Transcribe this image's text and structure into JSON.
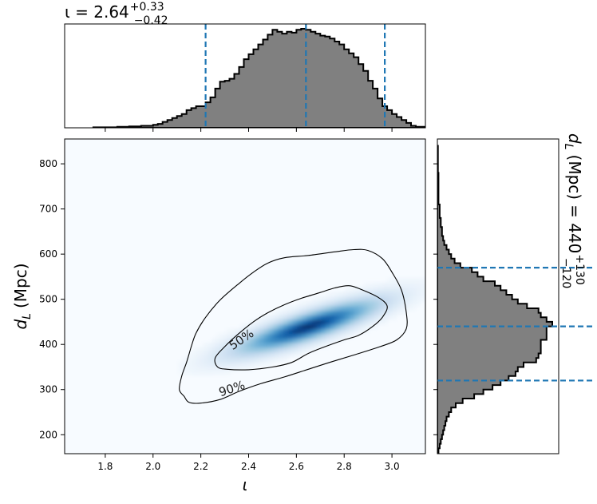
{
  "chart_data": {
    "type": "corner-plot",
    "panels": {
      "joint": {
        "type": "heatmap",
        "xlabel_sym": "ι",
        "ylabel_sym": "d",
        "ylabel_sub": "L",
        "ylabel_unit": "(Mpc)",
        "xlim": [
          1.63,
          3.14
        ],
        "ylim": [
          158,
          855
        ],
        "xticks": [
          1.8,
          2.0,
          2.2,
          2.4,
          2.6,
          2.8,
          3.0
        ],
        "xtick_labels": [
          "1.8",
          "2.0",
          "2.2",
          "2.4",
          "2.6",
          "2.8",
          "3.0"
        ],
        "yticks": [
          200,
          300,
          400,
          500,
          600,
          700,
          800
        ],
        "ytick_labels": [
          "200",
          "300",
          "400",
          "500",
          "600",
          "700",
          "800"
        ],
        "colormap": "Blues",
        "density_peak": {
          "x": 2.65,
          "y": 440
        },
        "contours": [
          {
            "label": "50%",
            "label_at": {
              "x": 2.37,
              "y": 411
            },
            "points": [
              [
                2.26,
                370
              ],
              [
                2.27,
                350
              ],
              [
                2.31,
                345
              ],
              [
                2.4,
                344
              ],
              [
                2.5,
                350
              ],
              [
                2.58,
                360
              ],
              [
                2.65,
                380
              ],
              [
                2.72,
                395
              ],
              [
                2.8,
                410
              ],
              [
                2.86,
                420
              ],
              [
                2.92,
                440
              ],
              [
                2.96,
                460
              ],
              [
                2.98,
                485
              ],
              [
                2.94,
                505
              ],
              [
                2.87,
                522
              ],
              [
                2.82,
                530
              ],
              [
                2.76,
                525
              ],
              [
                2.7,
                515
              ],
              [
                2.62,
                502
              ],
              [
                2.55,
                488
              ],
              [
                2.48,
                470
              ],
              [
                2.42,
                450
              ],
              [
                2.35,
                420
              ],
              [
                2.3,
                395
              ]
            ]
          },
          {
            "label": "90%",
            "label_at": {
              "x": 2.33,
              "y": 302
            },
            "points": [
              [
                2.11,
                300
              ],
              [
                2.13,
                285
              ],
              [
                2.15,
                272
              ],
              [
                2.2,
                270
              ],
              [
                2.28,
                278
              ],
              [
                2.36,
                296
              ],
              [
                2.45,
                313
              ],
              [
                2.55,
                328
              ],
              [
                2.65,
                345
              ],
              [
                2.75,
                362
              ],
              [
                2.85,
                378
              ],
              [
                2.95,
                395
              ],
              [
                3.02,
                410
              ],
              [
                3.06,
                435
              ],
              [
                3.06,
                470
              ],
              [
                3.04,
                520
              ],
              [
                3.0,
                560
              ],
              [
                2.96,
                590
              ],
              [
                2.9,
                608
              ],
              [
                2.84,
                610
              ],
              [
                2.76,
                605
              ],
              [
                2.65,
                597
              ],
              [
                2.55,
                592
              ],
              [
                2.48,
                580
              ],
              [
                2.42,
                560
              ],
              [
                2.36,
                535
              ],
              [
                2.28,
                498
              ],
              [
                2.22,
                460
              ],
              [
                2.18,
                425
              ],
              [
                2.16,
                395
              ],
              [
                2.14,
                360
              ],
              [
                2.12,
                330
              ]
            ]
          }
        ]
      },
      "marginal_x": {
        "type": "histogram",
        "variable": "ι",
        "title_main": "ι = 2.64",
        "title_sup": "+0.33",
        "title_sub": "−0.42",
        "median": 2.64,
        "quantiles": [
          2.22,
          2.64,
          2.97
        ],
        "quantile_style": "dashed",
        "quantile_color": "#1f77b4",
        "fill_color": "#808080",
        "bin_edges": [
          1.75,
          1.8,
          1.85,
          1.9,
          1.95,
          2.0,
          2.02,
          2.04,
          2.06,
          2.08,
          2.1,
          2.12,
          2.14,
          2.16,
          2.18,
          2.2,
          2.22,
          2.24,
          2.26,
          2.28,
          2.3,
          2.32,
          2.34,
          2.36,
          2.38,
          2.4,
          2.42,
          2.44,
          2.46,
          2.48,
          2.5,
          2.52,
          2.54,
          2.56,
          2.58,
          2.6,
          2.62,
          2.64,
          2.66,
          2.68,
          2.7,
          2.72,
          2.74,
          2.76,
          2.78,
          2.8,
          2.82,
          2.84,
          2.86,
          2.88,
          2.9,
          2.92,
          2.94,
          2.96,
          2.98,
          3.0,
          3.02,
          3.04,
          3.06,
          3.08,
          3.1,
          3.12,
          3.14
        ],
        "heights": [
          0.005,
          0.005,
          0.01,
          0.015,
          0.02,
          0.03,
          0.04,
          0.06,
          0.08,
          0.1,
          0.12,
          0.14,
          0.18,
          0.2,
          0.22,
          0.22,
          0.26,
          0.31,
          0.4,
          0.47,
          0.48,
          0.5,
          0.55,
          0.62,
          0.7,
          0.75,
          0.8,
          0.85,
          0.9,
          0.95,
          1.0,
          0.98,
          0.96,
          0.98,
          0.97,
          1.0,
          1.01,
          1.0,
          0.98,
          0.96,
          0.94,
          0.93,
          0.91,
          0.88,
          0.85,
          0.8,
          0.76,
          0.72,
          0.65,
          0.58,
          0.48,
          0.4,
          0.3,
          0.22,
          0.18,
          0.14,
          0.11,
          0.08,
          0.05,
          0.02,
          0.01,
          0.01
        ]
      },
      "marginal_y": {
        "type": "histogram",
        "orientation": "horizontal",
        "title_main": "= 440",
        "title_sup": "+130",
        "title_sub": "−120",
        "median": 440,
        "quantiles": [
          320,
          440,
          570
        ],
        "quantile_style": "dashed",
        "quantile_color": "#1f77b4",
        "fill_color": "#808080",
        "bin_edges": [
          158,
          170,
          180,
          190,
          200,
          210,
          220,
          230,
          240,
          250,
          260,
          270,
          280,
          290,
          300,
          310,
          320,
          330,
          340,
          350,
          360,
          370,
          380,
          390,
          400,
          410,
          420,
          430,
          440,
          450,
          460,
          470,
          480,
          490,
          500,
          510,
          520,
          530,
          540,
          550,
          560,
          570,
          580,
          590,
          600,
          610,
          620,
          630,
          640,
          650,
          660,
          670,
          680,
          690,
          700,
          710,
          720,
          730,
          740,
          760,
          780,
          800,
          820,
          840
        ],
        "heights": [
          0.01,
          0.02,
          0.03,
          0.04,
          0.05,
          0.06,
          0.07,
          0.08,
          0.1,
          0.12,
          0.16,
          0.22,
          0.32,
          0.4,
          0.48,
          0.55,
          0.62,
          0.68,
          0.7,
          0.75,
          0.86,
          0.88,
          0.9,
          0.9,
          0.9,
          0.95,
          0.95,
          0.95,
          1.0,
          0.95,
          0.9,
          0.88,
          0.78,
          0.7,
          0.65,
          0.6,
          0.55,
          0.5,
          0.4,
          0.35,
          0.3,
          0.2,
          0.15,
          0.12,
          0.1,
          0.08,
          0.06,
          0.05,
          0.04,
          0.04,
          0.03,
          0.03,
          0.02,
          0.02,
          0.02,
          0.01,
          0.01,
          0.01,
          0.01,
          0.01,
          0.005,
          0.005,
          0.005
        ]
      }
    }
  }
}
